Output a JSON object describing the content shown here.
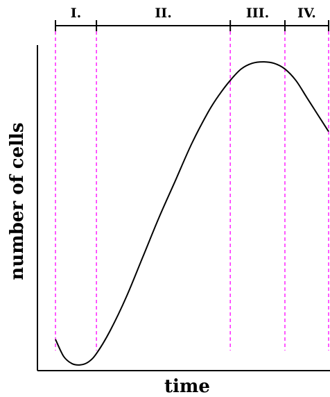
{
  "chart_data": {
    "type": "line",
    "title": "",
    "xlabel": "time",
    "ylabel": "number of cells",
    "phases": [
      {
        "label": "I.",
        "start": 0.0,
        "end": 0.15
      },
      {
        "label": "II.",
        "start": 0.15,
        "end": 0.64
      },
      {
        "label": "III.",
        "start": 0.64,
        "end": 0.84
      },
      {
        "label": "IV.",
        "start": 0.84,
        "end": 1.0
      }
    ],
    "series": [
      {
        "x": [
          0.0,
          0.03,
          0.06,
          0.09,
          0.12,
          0.15,
          0.2,
          0.26,
          0.32,
          0.38,
          0.44,
          0.5,
          0.56,
          0.6,
          0.64,
          0.68,
          0.72,
          0.76,
          0.8,
          0.84,
          0.88,
          0.92,
          0.96,
          1.0
        ],
        "y": [
          0.11,
          0.05,
          0.025,
          0.02,
          0.03,
          0.06,
          0.14,
          0.26,
          0.4,
          0.54,
          0.67,
          0.8,
          0.91,
          0.97,
          1.02,
          1.06,
          1.08,
          1.085,
          1.08,
          1.06,
          1.02,
          0.96,
          0.9,
          0.84
        ]
      }
    ],
    "xlim": [
      0,
      1
    ],
    "ylim": [
      0,
      1.2
    ],
    "grid": false,
    "colors": {
      "curve": "#000000",
      "axes": "#000000",
      "boundaries": "#ff22ff"
    }
  }
}
